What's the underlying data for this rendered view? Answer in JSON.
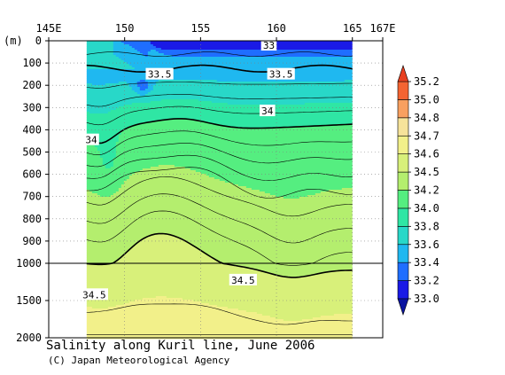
{
  "chart_data": {
    "type": "heatmap",
    "title": "Salinity along Kuril line, June 2006",
    "credit": "(C) Japan Meteorological Agency",
    "xlabel": "",
    "ylabel": "(m)",
    "x_ticks": [
      {
        "value": 145,
        "label": "145E"
      },
      {
        "value": 150,
        "label": "150"
      },
      {
        "value": 155,
        "label": "155"
      },
      {
        "value": 160,
        "label": "160"
      },
      {
        "value": 165,
        "label": "165"
      },
      {
        "value": 167,
        "label": "167E"
      }
    ],
    "xlim": [
      145,
      167
    ],
    "data_x_range": [
      147.5,
      165
    ],
    "ylim": [
      0,
      2000
    ],
    "y_axis_break_depth": 1000,
    "y_ticks": [
      0,
      100,
      200,
      300,
      400,
      500,
      600,
      700,
      800,
      900,
      1000,
      1500,
      2000
    ],
    "grid": true,
    "colorbar": {
      "levels": [
        33.0,
        33.2,
        33.4,
        33.6,
        33.8,
        34.0,
        34.2,
        34.5,
        34.6,
        34.7,
        34.8,
        35.0,
        35.2
      ],
      "colors": [
        "#1a1ae6",
        "#1f6eff",
        "#1fb8f0",
        "#28d8c8",
        "#2fe6a4",
        "#55ee80",
        "#b4ee6e",
        "#d8f07a",
        "#f2f08a",
        "#f6e39a",
        "#f8a060",
        "#f46432"
      ],
      "under_color": "#0a14a0",
      "over_color": "#e84020",
      "placement": "right"
    },
    "contour_labels": [
      {
        "text": "33",
        "lon": 159.5,
        "depth": 20
      },
      {
        "text": "33.5",
        "lon": 152.3,
        "depth": 150
      },
      {
        "text": "33.5",
        "lon": 160.3,
        "depth": 150
      },
      {
        "text": "34",
        "lon": 159.4,
        "depth": 315
      },
      {
        "text": "34",
        "lon": 147.8,
        "depth": 445
      },
      {
        "text": "34.5",
        "lon": 157.8,
        "depth": 1225
      },
      {
        "text": "34.5",
        "lon": 148.0,
        "depth": 1420
      }
    ]
  }
}
